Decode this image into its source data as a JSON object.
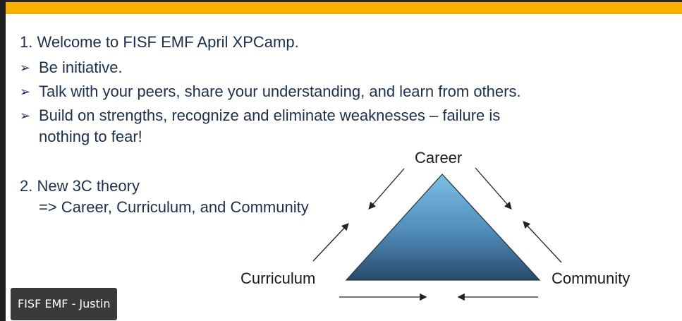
{
  "slide": {
    "item1": "1. Welcome to FISF EMF April XPCamp.",
    "bullets": [
      "Be initiative.",
      "Talk with your peers, share your understanding, and learn from others.",
      "Build on strengths, recognize and eliminate weaknesses – failure is",
      "nothing to fear!"
    ],
    "item2_line1": "2. New 3C theory",
    "item2_line2": "=> Career, Curriculum, and Community",
    "bullet_icon": "arrow-bullet-icon"
  },
  "diagram": {
    "top_label": "Career",
    "left_label": "Curriculum",
    "right_label": "Community",
    "colors": {
      "triangle_light": "#74b4dd",
      "triangle_dark": "#2c5478",
      "arrow": "#222222"
    }
  },
  "participant": {
    "name": "FISF EMF - Justin"
  },
  "colors": {
    "accent_bar": "#f5b000",
    "text": "#1c2f4f"
  }
}
